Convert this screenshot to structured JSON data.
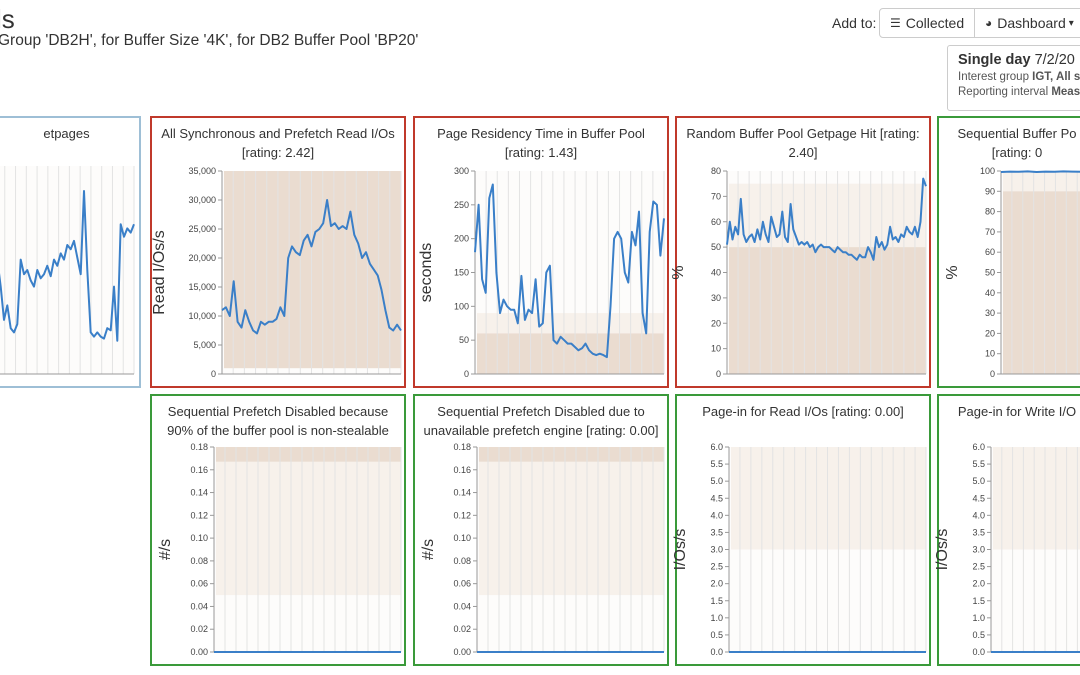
{
  "header": {
    "title": "ls",
    "subtitle": "Group 'DB2H', for Buffer Size '4K', for DB2 Buffer Pool 'BP20'"
  },
  "toolbar": {
    "add_to_label": "Add to:",
    "collected_label": "Collected",
    "collected_icon": "list-icon",
    "dashboard_label": "Dashboard",
    "dashboard_icon": "dashboard-icon",
    "dashboard_caret": "▾"
  },
  "info_box": {
    "heading": "Single day",
    "date": "7/2/20",
    "line2_prefix": "Interest group ",
    "line2_group": "IGT",
    "line2_rest": ", All s",
    "line3_prefix": "Reporting interval ",
    "line3_bold": "Meas"
  },
  "colors": {
    "line": "#3a7fc8",
    "band_dark": "#e6d6c8",
    "band_light": "#f6efe8",
    "grid": "#e3e3e3",
    "red": "#c0392b",
    "green": "#3a9a3a",
    "blue": "#9ebfd6"
  },
  "panels": [
    {
      "id": "getpages",
      "status": "blue",
      "title_lines": [
        "etpages"
      ],
      "chart_data": {
        "type": "line",
        "ylabel": "",
        "ylim": [
          0,
          1
        ],
        "yticks": [],
        "bands": [],
        "series": [
          {
            "values": [
              0.62,
              0.55,
              0.42,
              0.26,
              0.33,
              0.22,
              0.2,
              0.24,
              0.55,
              0.48,
              0.5,
              0.45,
              0.42,
              0.5,
              0.46,
              0.48,
              0.52,
              0.47,
              0.55,
              0.52,
              0.58,
              0.55,
              0.62,
              0.6,
              0.64,
              0.56,
              0.48,
              0.88,
              0.5,
              0.2,
              0.18,
              0.2,
              0.18,
              0.17,
              0.22,
              0.21,
              0.42,
              0.16,
              0.72,
              0.66,
              0.7,
              0.68,
              0.72
            ]
          }
        ]
      }
    },
    {
      "id": "sync-prefetch-read",
      "status": "red",
      "title_lines": [
        "All Synchronous and Prefetch Read I/Os",
        "[rating: 2.42]"
      ],
      "chart_data": {
        "type": "line",
        "ylabel": "Read I/Os/s",
        "ylim": [
          0,
          35000
        ],
        "yticks": [
          0,
          5000,
          10000,
          15000,
          20000,
          25000,
          30000,
          35000
        ],
        "ytick_labels": [
          "0",
          "5,000",
          "10,000",
          "15,000",
          "20,000",
          "25,000",
          "30,000",
          "35,000"
        ],
        "bands": [
          {
            "from": 1000,
            "to": 35000,
            "shade": "dark"
          }
        ],
        "series": [
          {
            "values": [
              11000,
              11500,
              10000,
              16000,
              9000,
              8000,
              11000,
              9000,
              7500,
              7000,
              9000,
              8500,
              9000,
              9000,
              9500,
              11500,
              10000,
              20000,
              22000,
              21000,
              20500,
              23000,
              24000,
              22000,
              24500,
              25000,
              26000,
              30000,
              25500,
              26000,
              25000,
              25500,
              25000,
              28000,
              24000,
              22500,
              20000,
              21000,
              19000,
              18000,
              17000,
              14500,
              11000,
              8000,
              7500,
              8500,
              7500
            ]
          }
        ]
      }
    },
    {
      "id": "page-residency",
      "status": "red",
      "title_lines": [
        "Page Residency Time in Buffer Pool",
        "[rating: 1.43]"
      ],
      "chart_data": {
        "type": "line",
        "ylabel": "seconds",
        "ylim": [
          0,
          300
        ],
        "yticks": [
          0,
          50,
          100,
          150,
          200,
          250,
          300
        ],
        "ytick_labels": [
          "0",
          "50",
          "100",
          "150",
          "200",
          "250",
          "300"
        ],
        "bands": [
          {
            "from": 60,
            "to": 90,
            "shade": "light"
          },
          {
            "from": 0,
            "to": 60,
            "shade": "dark"
          }
        ],
        "series": [
          {
            "values": [
              180,
              250,
              140,
              120,
              260,
              280,
              150,
              90,
              110,
              100,
              95,
              95,
              75,
              145,
              80,
              95,
              90,
              140,
              70,
              75,
              150,
              160,
              50,
              45,
              55,
              50,
              45,
              45,
              40,
              35,
              38,
              45,
              35,
              30,
              28,
              30,
              28,
              25,
              100,
              200,
              210,
              200,
              150,
              135,
              210,
              190,
              240,
              90,
              60,
              210,
              255,
              250,
              175,
              230
            ]
          }
        ]
      }
    },
    {
      "id": "random-getpage-hit",
      "status": "red",
      "title_lines": [
        "Random Buffer Pool Getpage Hit [rating:",
        "2.40]"
      ],
      "chart_data": {
        "type": "line",
        "ylabel": "%",
        "ylim": [
          0,
          80
        ],
        "yticks": [
          0,
          10,
          20,
          30,
          40,
          50,
          60,
          70,
          80
        ],
        "ytick_labels": [
          "0",
          "10",
          "20",
          "30",
          "40",
          "50",
          "60",
          "70",
          "80"
        ],
        "bands": [
          {
            "from": 50,
            "to": 75,
            "shade": "light"
          },
          {
            "from": 0,
            "to": 50,
            "shade": "dark"
          }
        ],
        "series": [
          {
            "values": [
              51,
              60,
              53,
              58,
              55,
              69,
              55,
              52,
              54,
              55,
              52,
              57,
              53,
              60,
              55,
              52,
              62,
              58,
              54,
              55,
              64,
              54,
              52,
              67,
              57,
              54,
              51,
              52,
              51,
              52,
              50,
              51,
              48,
              50,
              51,
              50,
              50,
              50,
              49,
              48,
              50,
              49,
              48,
              48,
              47,
              47,
              46,
              45,
              47,
              46,
              46,
              50,
              48,
              45,
              54,
              50,
              52,
              49,
              51,
              58,
              53,
              54,
              52,
              55,
              54,
              58,
              56,
              55,
              58,
              54,
              60,
              77,
              74
            ]
          }
        ]
      }
    },
    {
      "id": "sequential-getpage-hit",
      "status": "green",
      "title_lines": [
        "Sequential Buffer Po",
        "[rating: 0"
      ],
      "chart_data": {
        "type": "line",
        "ylabel": "%",
        "ylim": [
          0,
          100
        ],
        "yticks": [
          0,
          10,
          20,
          30,
          40,
          50,
          60,
          70,
          80,
          90,
          100
        ],
        "ytick_labels": [
          "0",
          "10",
          "20",
          "30",
          "40",
          "50",
          "60",
          "70",
          "80",
          "90",
          "100"
        ],
        "bands": [
          {
            "from": 90,
            "to": 100,
            "shade": "light"
          },
          {
            "from": 0,
            "to": 90,
            "shade": "dark"
          }
        ],
        "series": [
          {
            "values": [
              99.5,
              99.7,
              99.6,
              99.8,
              99.5,
              99.7,
              99.6,
              99.8,
              99.7,
              99.6,
              99.8,
              99.5
            ]
          }
        ]
      }
    },
    {
      "id": "prefetch-disabled-nonstealable",
      "status": "green",
      "title_lines": [
        "Sequential Prefetch Disabled because",
        "90% of the buffer pool is non-stealable"
      ],
      "chart_data": {
        "type": "line",
        "ylabel": "#/s",
        "ylim": [
          0,
          0.18
        ],
        "yticks": [
          0,
          0.02,
          0.04,
          0.06,
          0.08,
          0.1,
          0.12,
          0.14,
          0.16,
          0.18
        ],
        "ytick_labels": [
          "0.00",
          "0.02",
          "0.04",
          "0.06",
          "0.08",
          "0.10",
          "0.12",
          "0.14",
          "0.16",
          "0.18"
        ],
        "bands": [
          {
            "from": 0.167,
            "to": 0.18,
            "shade": "dark"
          },
          {
            "from": 0.05,
            "to": 0.167,
            "shade": "light"
          }
        ],
        "series": [
          {
            "values": [
              0,
              0
            ]
          }
        ]
      }
    },
    {
      "id": "prefetch-disabled-engine",
      "status": "green",
      "title_lines": [
        "Sequential Prefetch Disabled due to",
        "unavailable prefetch engine [rating: 0.00]"
      ],
      "chart_data": {
        "type": "line",
        "ylabel": "#/s",
        "ylim": [
          0,
          0.18
        ],
        "yticks": [
          0,
          0.02,
          0.04,
          0.06,
          0.08,
          0.1,
          0.12,
          0.14,
          0.16,
          0.18
        ],
        "ytick_labels": [
          "0.00",
          "0.02",
          "0.04",
          "0.06",
          "0.08",
          "0.10",
          "0.12",
          "0.14",
          "0.16",
          "0.18"
        ],
        "bands": [
          {
            "from": 0.167,
            "to": 0.18,
            "shade": "dark"
          },
          {
            "from": 0.05,
            "to": 0.167,
            "shade": "light"
          }
        ],
        "series": [
          {
            "values": [
              0,
              0
            ]
          }
        ]
      }
    },
    {
      "id": "page-in-read",
      "status": "green",
      "title_lines": [
        "Page-in for Read I/Os [rating: 0.00]"
      ],
      "chart_data": {
        "type": "line",
        "ylabel": "I/Os/s",
        "ylim": [
          0,
          6
        ],
        "yticks": [
          0,
          0.5,
          1,
          1.5,
          2,
          2.5,
          3,
          3.5,
          4,
          4.5,
          5,
          5.5,
          6
        ],
        "ytick_labels": [
          "0.0",
          "0.5",
          "1.0",
          "1.5",
          "2.0",
          "2.5",
          "3.0",
          "3.5",
          "4.0",
          "4.5",
          "5.0",
          "5.5",
          "6.0"
        ],
        "bands": [
          {
            "from": 3,
            "to": 6,
            "shade": "light"
          }
        ],
        "series": [
          {
            "values": [
              0,
              0
            ]
          }
        ]
      }
    },
    {
      "id": "page-in-write",
      "status": "green",
      "title_lines": [
        "Page-in for Write I/O"
      ],
      "chart_data": {
        "type": "line",
        "ylabel": "I/Os/s",
        "ylim": [
          0,
          6
        ],
        "yticks": [
          0,
          0.5,
          1,
          1.5,
          2,
          2.5,
          3,
          3.5,
          4,
          4.5,
          5,
          5.5,
          6
        ],
        "ytick_labels": [
          "0.0",
          "0.5",
          "1.0",
          "1.5",
          "2.0",
          "2.5",
          "3.0",
          "3.5",
          "4.0",
          "4.5",
          "5.0",
          "5.5",
          "6.0"
        ],
        "bands": [
          {
            "from": 3,
            "to": 6,
            "shade": "light"
          }
        ],
        "series": [
          {
            "values": [
              0,
              0
            ]
          }
        ]
      }
    }
  ]
}
